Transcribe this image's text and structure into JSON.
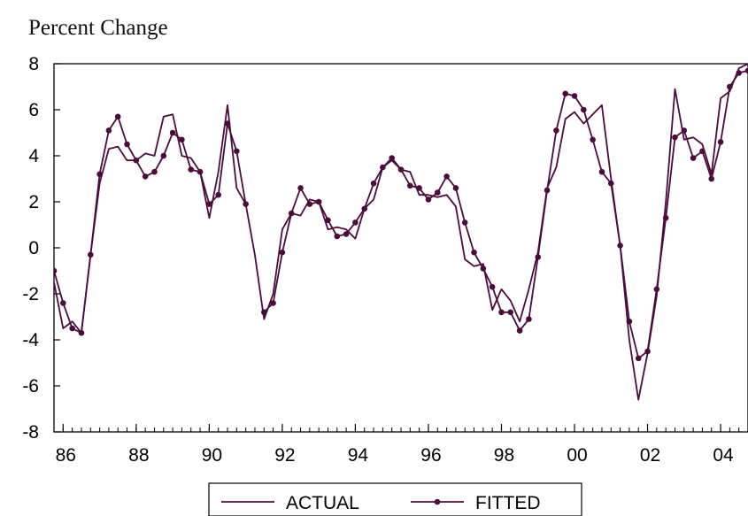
{
  "chart_data": {
    "type": "line",
    "ylabel": "Percent Change",
    "ylim": [
      -8,
      8
    ],
    "yticks": [
      8,
      6,
      4,
      2,
      0,
      -2,
      -4,
      -6,
      -8
    ],
    "xlim": [
      1985.75,
      2004.75
    ],
    "xticks": [
      {
        "value": 1986,
        "label": "86"
      },
      {
        "value": 1988,
        "label": "88"
      },
      {
        "value": 1990,
        "label": "90"
      },
      {
        "value": 1992,
        "label": "92"
      },
      {
        "value": 1994,
        "label": "94"
      },
      {
        "value": 1996,
        "label": "96"
      },
      {
        "value": 1998,
        "label": "98"
      },
      {
        "value": 2000,
        "label": "00"
      },
      {
        "value": 2002,
        "label": "02"
      },
      {
        "value": 2004,
        "label": "04"
      }
    ],
    "x": [
      1985.75,
      1986,
      1986.25,
      1986.5,
      1986.75,
      1987,
      1987.25,
      1987.5,
      1987.75,
      1988,
      1988.25,
      1988.5,
      1988.75,
      1989,
      1989.25,
      1989.5,
      1989.75,
      1990,
      1990.25,
      1990.5,
      1990.75,
      1991,
      1991.25,
      1991.5,
      1991.75,
      1992,
      1992.25,
      1992.5,
      1992.75,
      1993,
      1993.25,
      1993.5,
      1993.75,
      1994,
      1994.25,
      1994.5,
      1994.75,
      1995,
      1995.25,
      1995.5,
      1995.75,
      1996,
      1996.25,
      1996.5,
      1996.75,
      1997,
      1997.25,
      1997.5,
      1997.75,
      1998,
      1998.25,
      1998.5,
      1998.75,
      1999,
      1999.25,
      1999.5,
      1999.75,
      2000,
      2000.25,
      2000.5,
      2000.75,
      2001,
      2001.25,
      2001.5,
      2001.75,
      2002,
      2002.25,
      2002.5,
      2002.75,
      2003,
      2003.25,
      2003.5,
      2003.75,
      2004,
      2004.25,
      2004.5,
      2004.75
    ],
    "series": [
      {
        "name": "ACTUAL",
        "color": "#4b0c3c",
        "marker": "none",
        "values": [
          -1.5,
          -3.5,
          -3.2,
          -3.7,
          -0.3,
          2.8,
          4.3,
          4.4,
          3.8,
          3.8,
          4.1,
          4.0,
          5.7,
          5.8,
          4.0,
          3.9,
          3.3,
          1.3,
          3.3,
          6.2,
          2.6,
          1.9,
          -0.3,
          -3.1,
          -2.0,
          0.8,
          1.5,
          1.4,
          2.1,
          2.0,
          0.8,
          0.9,
          0.8,
          0.4,
          1.7,
          2.1,
          3.5,
          3.8,
          3.4,
          3.3,
          2.3,
          2.3,
          2.2,
          2.3,
          1.8,
          -0.5,
          -0.8,
          -0.7,
          -2.7,
          -1.8,
          -2.3,
          -3.2,
          -1.8,
          -0.2,
          2.6,
          3.5,
          5.6,
          5.9,
          5.4,
          5.8,
          6.2,
          3.0,
          0.1,
          -4.0,
          -6.6,
          -4.6,
          -2.1,
          2.0,
          6.9,
          4.7,
          4.8,
          4.5,
          3.2,
          6.5,
          6.8,
          7.8,
          8.0
        ]
      },
      {
        "name": "FITTED",
        "color": "#4b0c3c",
        "marker": "dot",
        "values": [
          -1.0,
          -2.4,
          -3.5,
          -3.7,
          -0.3,
          3.2,
          5.1,
          5.7,
          4.5,
          3.8,
          3.1,
          3.3,
          4.0,
          5.0,
          4.7,
          3.4,
          3.3,
          1.9,
          2.3,
          5.4,
          4.2,
          1.9,
          null,
          -2.8,
          -2.4,
          -0.2,
          1.5,
          2.6,
          1.9,
          2.0,
          1.2,
          0.5,
          0.6,
          1.1,
          1.7,
          2.8,
          3.5,
          3.9,
          3.4,
          2.7,
          2.6,
          2.1,
          2.4,
          3.1,
          2.6,
          1.1,
          -0.2,
          -0.9,
          -1.7,
          -2.8,
          -2.8,
          -3.6,
          -3.1,
          -0.4,
          2.5,
          5.1,
          6.7,
          6.6,
          6.0,
          4.7,
          3.3,
          2.8,
          0.1,
          -3.2,
          -4.8,
          -4.5,
          -1.8,
          1.3,
          4.8,
          5.1,
          3.9,
          4.2,
          3.0,
          4.6,
          7.0,
          7.6,
          7.7
        ]
      }
    ],
    "legend": {
      "position": "bottom-center",
      "border": true
    },
    "grid": false
  }
}
